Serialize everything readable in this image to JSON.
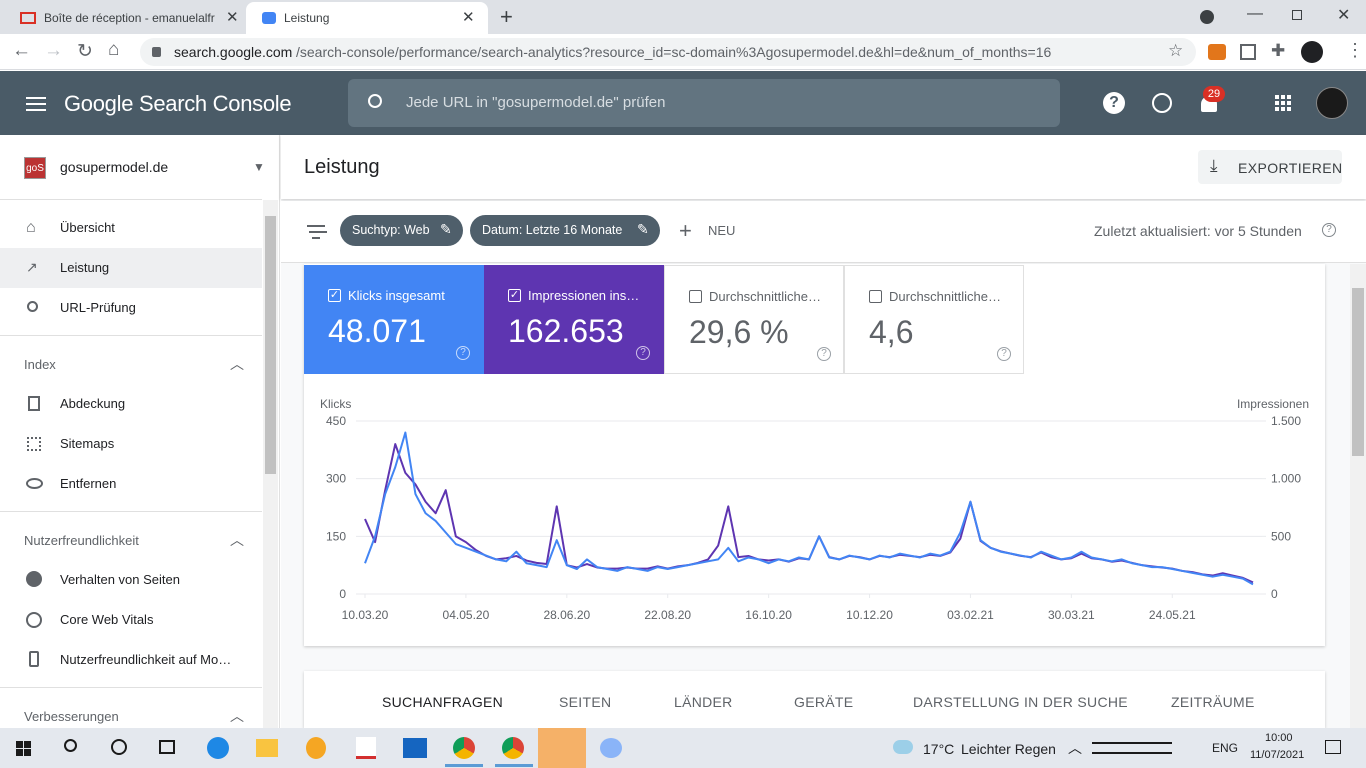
{
  "browser": {
    "tabs": [
      "Boîte de réception - emanuelalfr",
      "Leistung"
    ],
    "url_host": "search.google.com",
    "url_path": "/search-console/performance/search-analytics?resource_id=sc-domain%3Agosupermodel.de&hl=de&num_of_months=16"
  },
  "header": {
    "brand": "Google Search Console",
    "search_placeholder": "Jede URL in \"gosupermodel.de\" prüfen",
    "notifications": "29"
  },
  "sidebar": {
    "property": "gosupermodel.de",
    "items": [
      "Übersicht",
      "Leistung",
      "URL-Prüfung"
    ],
    "sections": [
      {
        "title": "Index",
        "items": [
          "Abdeckung",
          "Sitemaps",
          "Entfernen"
        ]
      },
      {
        "title": "Nutzerfreundlichkeit",
        "items": [
          "Verhalten von Seiten",
          "Core Web Vitals",
          "Nutzerfreundlichkeit auf Mo…"
        ]
      },
      {
        "title": "Verbesserungen"
      }
    ]
  },
  "page": {
    "title": "Leistung",
    "export": "EXPORTIEREN",
    "filters": [
      "Suchtyp: Web",
      "Datum: Letzte 16 Monate"
    ],
    "new": "NEU",
    "updated": "Zuletzt aktualisiert: vor 5 Stunden"
  },
  "metrics": [
    {
      "label": "Klicks insgesamt",
      "value": "48.071"
    },
    {
      "label": "Impressionen ins…",
      "value": "162.653"
    },
    {
      "label": "Durchschnittliche…",
      "value": "29,6 %"
    },
    {
      "label": "Durchschnittliche…",
      "value": "4,6"
    }
  ],
  "tabs": [
    "SUCHANFRAGEN",
    "SEITEN",
    "LÄNDER",
    "GERÄTE",
    "DARSTELLUNG IN DER SUCHE",
    "ZEITRÄUME"
  ],
  "taskbar": {
    "weather": "17°C",
    "weather_text": "Leichter Regen",
    "lang": "ENG",
    "time": "10:00",
    "date": "11/07/2021"
  },
  "chart_data": {
    "type": "line",
    "y_label": "Klicks",
    "y2_label": "Impressionen",
    "xlim": [
      0,
      88
    ],
    "xticks": [
      {
        "value": 0,
        "label": "10.03.20"
      },
      {
        "value": 10,
        "label": "04.05.20"
      },
      {
        "value": 20,
        "label": "28.06.20"
      },
      {
        "value": 30,
        "label": "22.08.20"
      },
      {
        "value": 40,
        "label": "16.10.20"
      },
      {
        "value": 50,
        "label": "10.12.20"
      },
      {
        "value": 60,
        "label": "03.02.21"
      },
      {
        "value": 70,
        "label": "30.03.21"
      },
      {
        "value": 80,
        "label": "24.05.21"
      }
    ],
    "ylim": [
      0,
      450
    ],
    "yticks": [
      0,
      150,
      300,
      450
    ],
    "y2lim": [
      0,
      1500
    ],
    "y2ticks": [
      0,
      500,
      {
        "value": 1000,
        "label": "1.000"
      },
      {
        "value": 1500,
        "label": "1.500"
      }
    ],
    "grid": true,
    "series": [
      {
        "color": "#5e35b1",
        "axis": "y2",
        "values": [
          650,
          450,
          900,
          1300,
          1050,
          950,
          800,
          700,
          900,
          500,
          450,
          380,
          330,
          300,
          310,
          330,
          290,
          270,
          260,
          760,
          250,
          230,
          260,
          230,
          220,
          220,
          230,
          220,
          220,
          240,
          220,
          240,
          250,
          270,
          300,
          420,
          760,
          320,
          330,
          300,
          290,
          300,
          280,
          310,
          300,
          500,
          320,
          300,
          330,
          320,
          300,
          330,
          320,
          340,
          330,
          320,
          340,
          330,
          360,
          480,
          800,
          460,
          400,
          370,
          350,
          330,
          320,
          360,
          320,
          300,
          310,
          350,
          310,
          300,
          280,
          290,
          270,
          250,
          240,
          230,
          220,
          200,
          190,
          170,
          160,
          180,
          160,
          140,
          100
        ]
      },
      {
        "color": "#4285f4",
        "values": [
          80,
          150,
          260,
          330,
          420,
          260,
          210,
          190,
          160,
          130,
          120,
          110,
          100,
          90,
          85,
          110,
          80,
          75,
          70,
          140,
          75,
          65,
          90,
          70,
          65,
          60,
          70,
          65,
          60,
          70,
          65,
          70,
          75,
          80,
          85,
          90,
          120,
          85,
          95,
          90,
          80,
          90,
          85,
          95,
          90,
          150,
          95,
          90,
          100,
          95,
          90,
          100,
          95,
          105,
          100,
          95,
          105,
          100,
          110,
          160,
          240,
          140,
          120,
          110,
          105,
          100,
          95,
          110,
          100,
          90,
          95,
          110,
          95,
          90,
          85,
          90,
          80,
          75,
          70,
          70,
          65,
          60,
          55,
          50,
          45,
          50,
          45,
          40,
          25
        ]
      }
    ]
  }
}
